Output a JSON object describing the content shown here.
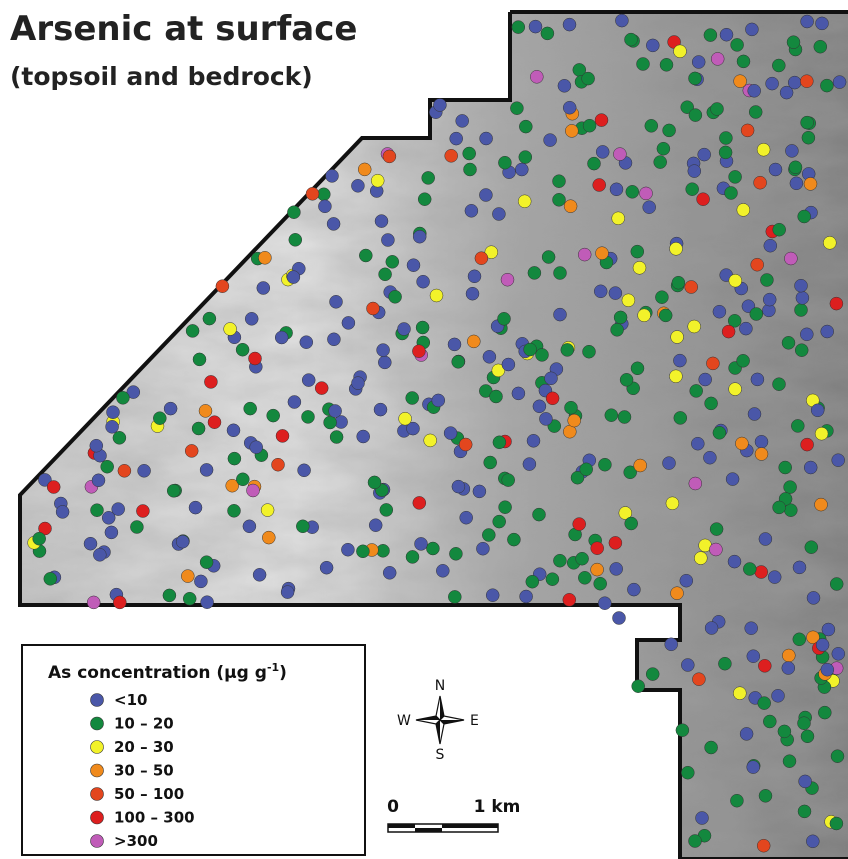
{
  "header": {
    "title": "Arsenic at surface",
    "subtitle": "(topsoil and bedrock)"
  },
  "legend": {
    "title": {
      "text": "As concentration (µg g",
      "superscript": "-1",
      "suffix": ")"
    },
    "items": [
      {
        "label": "<10",
        "color": "#4a57a8"
      },
      {
        "label": "10 – 20",
        "color": "#13883e"
      },
      {
        "label": "20 – 30",
        "color": "#f2f22a"
      },
      {
        "label": "30 – 50",
        "color": "#f08a1c"
      },
      {
        "label": "50 – 100",
        "color": "#e3461e"
      },
      {
        "label": "100 – 300",
        "color": "#dd1f1f"
      },
      {
        "label": ">300",
        "color": "#c05cb8"
      }
    ]
  },
  "compass": {
    "north": "N",
    "south": "S",
    "east": "E",
    "west": "W"
  },
  "scale_bar": {
    "start": "0",
    "end": "1 km"
  }
}
